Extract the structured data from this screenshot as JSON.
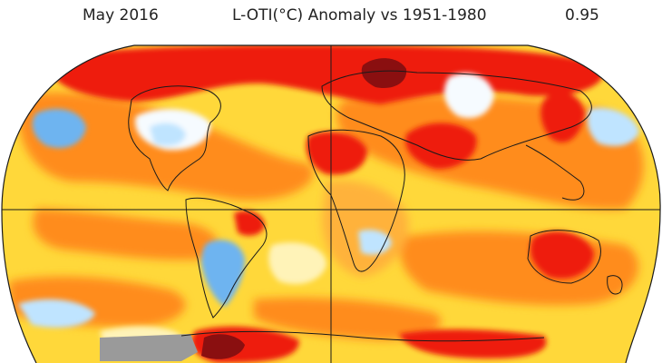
{
  "header": {
    "period": "May 2016",
    "title": "L-OTI(°C) Anomaly vs 1951-1980",
    "global_mean": "0.95"
  },
  "palette": {
    "ocean_land_yellow": "#ffd83a",
    "orange": "#ff8c1a",
    "orange_light": "#ffb23a",
    "red": "#ee1a10",
    "dark_red": "#8a0f10",
    "pale": "#fff3b8",
    "white": "#f6fbff",
    "light_blue": "#bfe4ff",
    "blue": "#6eb4f0",
    "no_data": "#9a9a9a",
    "coast": "#1a1a1a"
  }
}
